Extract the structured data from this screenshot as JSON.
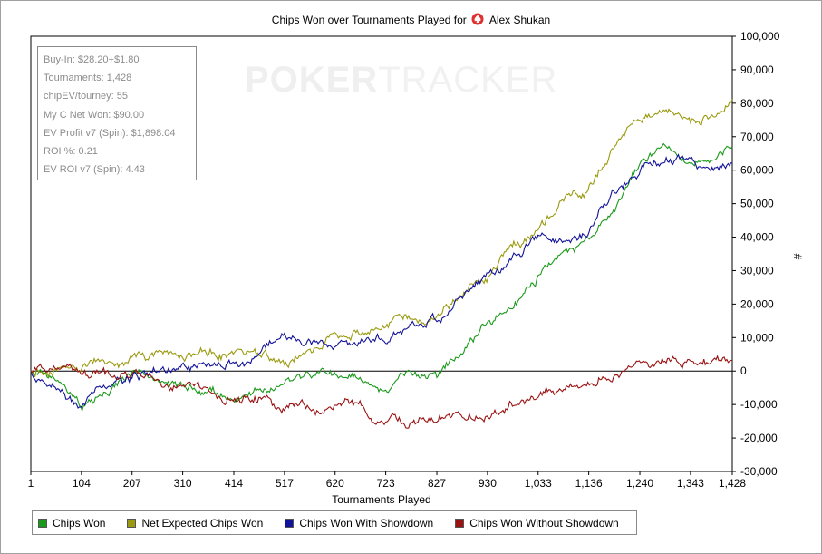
{
  "header": {
    "title": "Chips Won over Tournaments Played for",
    "player": "Alex Shukan"
  },
  "watermark": {
    "part1": "POKER",
    "part2": "TRACKER"
  },
  "stats_box": {
    "lines": [
      "Buy-In: $28.20+$1.80",
      "Tournaments: 1,428",
      "chipEV/tourney: 55",
      "My C Net Won: $90.00",
      "EV Profit v7 (Spin): $1,898.04",
      "ROI %: 0.21",
      "EV ROI v7 (Spin): 4.43"
    ]
  },
  "chart_data": {
    "type": "line",
    "xlabel": "Tournaments Played",
    "ylabel": "#",
    "xlim": [
      1,
      1428
    ],
    "ylim": [
      -30000,
      100000
    ],
    "x_ticks": [
      1,
      104,
      207,
      310,
      414,
      517,
      620,
      723,
      827,
      930,
      1033,
      1136,
      1240,
      1343,
      1428
    ],
    "x_tick_labels": [
      "1",
      "104",
      "207",
      "310",
      "414",
      "517",
      "620",
      "723",
      "827",
      "930",
      "1,033",
      "1,136",
      "1,240",
      "1,343",
      "1,428"
    ],
    "y_ticks": [
      -30000,
      -20000,
      -10000,
      0,
      10000,
      20000,
      30000,
      40000,
      50000,
      60000,
      70000,
      80000,
      90000,
      100000
    ],
    "y_tick_labels": [
      "-30,000",
      "-20,000",
      "-10,000",
      "0",
      "10,000",
      "20,000",
      "30,000",
      "40,000",
      "50,000",
      "60,000",
      "70,000",
      "80,000",
      "90,000",
      "100,000"
    ],
    "x": [
      1,
      50,
      104,
      150,
      207,
      260,
      310,
      360,
      414,
      470,
      517,
      570,
      620,
      670,
      723,
      770,
      827,
      880,
      930,
      980,
      1033,
      1090,
      1136,
      1190,
      1240,
      1290,
      1343,
      1390,
      1428
    ],
    "series": [
      {
        "name": "Chips Won",
        "color": "#1a9a1a",
        "values": [
          0,
          -2000,
          -11000,
          -6000,
          -1000,
          -4000,
          -5000,
          -6000,
          -8000,
          -6000,
          -2000,
          -1500,
          -1000,
          -2000,
          -6000,
          -1000,
          -2000,
          8000,
          14000,
          20000,
          28000,
          36000,
          38000,
          50000,
          62000,
          68000,
          63000,
          64000,
          67000
        ]
      },
      {
        "name": "Net Expected Chips Won",
        "color": "#9a9a10",
        "values": [
          0,
          500,
          1000,
          3000,
          4000,
          5000,
          6000,
          5000,
          6000,
          6000,
          3000,
          6000,
          10000,
          12000,
          13000,
          16000,
          15000,
          23000,
          28000,
          36000,
          42000,
          51000,
          55000,
          68000,
          74000,
          78000,
          75000,
          76000,
          80000
        ]
      },
      {
        "name": "Chips Won With Showdown",
        "color": "#12129a",
        "values": [
          0,
          -5000,
          -10000,
          -5000,
          -2000,
          0,
          1000,
          0,
          2000,
          6000,
          10000,
          8000,
          7000,
          8000,
          10000,
          12000,
          15000,
          22000,
          29000,
          34000,
          40000,
          39000,
          40000,
          54000,
          60000,
          64000,
          62000,
          61000,
          64000
        ]
      },
      {
        "name": "Chips Won Without Showdown",
        "color": "#9a1212",
        "values": [
          0,
          1000,
          -1000,
          -1500,
          -2000,
          -4000,
          -5000,
          -6500,
          -8000,
          -9000,
          -11000,
          -11500,
          -10000,
          -12000,
          -15000,
          -15500,
          -14000,
          -14000,
          -13000,
          -9000,
          -7000,
          -5000,
          -3000,
          0,
          2000,
          4000,
          3000,
          3000,
          3000
        ]
      }
    ],
    "legend_position": "bottom",
    "zero_line": true,
    "grid": false
  }
}
